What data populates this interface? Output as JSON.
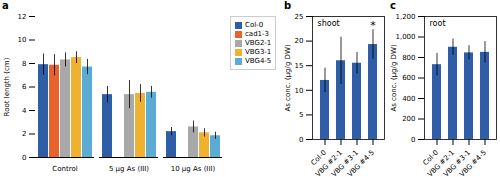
{
  "chart_data": [
    {
      "type": "bar",
      "categories": [
        "Control",
        "5 μg As (III)",
        "10 μg As (III)"
      ],
      "series": [
        {
          "name": "Col-0",
          "color": "#2e5ea8",
          "values": [
            7.9,
            5.35,
            2.2
          ],
          "errors": [
            0.9,
            0.7,
            0.35
          ]
        },
        {
          "name": "cad1-3",
          "color": "#e8622a",
          "values": [
            7.85,
            null,
            null
          ],
          "errors": [
            0.9,
            null,
            null
          ]
        },
        {
          "name": "VBG2-1",
          "color": "#a8a8a8",
          "values": [
            8.3,
            5.35,
            2.6
          ],
          "errors": [
            0.6,
            1.2,
            0.5
          ]
        },
        {
          "name": "VBG3-1",
          "color": "#f0b030",
          "values": [
            8.5,
            5.45,
            2.1
          ],
          "errors": [
            0.5,
            0.75,
            0.35
          ]
        },
        {
          "name": "VBG4-5",
          "color": "#5bacd4",
          "values": [
            7.7,
            5.55,
            1.85
          ],
          "errors": [
            0.65,
            0.5,
            0.3
          ]
        }
      ],
      "ylabel": "Root length (cm)",
      "ylim": [
        0,
        12
      ],
      "yticks": [
        0,
        2,
        4,
        6,
        8,
        10,
        12
      ],
      "legend": "right",
      "annotations": [
        {
          "text": "a"
        }
      ]
    },
    {
      "type": "bar",
      "title": "shoot",
      "categories": [
        "Col-0",
        "VBG #2-1",
        "VBG #3-1",
        "VBG #4-5"
      ],
      "values": [
        12.0,
        16.0,
        15.5,
        19.3
      ],
      "errors": [
        2.5,
        4.8,
        2.2,
        3.0
      ],
      "color": "#2e5ea8",
      "ylabel": "As conc. (μg/g DW)",
      "ylim": [
        0,
        25
      ],
      "yticks": [
        0,
        5,
        10,
        15,
        20,
        25
      ],
      "annotations": [
        {
          "text": "b"
        },
        {
          "text": "*",
          "category": "VBG #4-5"
        }
      ]
    },
    {
      "type": "bar",
      "title": "root",
      "categories": [
        "Col-0",
        "VBG #2-1",
        "VBG #3-1",
        "VBG #4-5"
      ],
      "values": [
        730,
        900,
        845,
        850
      ],
      "errors": [
        110,
        80,
        70,
        105
      ],
      "color": "#2e5ea8",
      "ylabel": "As conc. (μg/g DW)",
      "ylim": [
        0,
        1200
      ],
      "yticks": [
        0,
        200,
        400,
        600,
        800,
        1000,
        1200
      ],
      "annotations": [
        {
          "text": "c"
        }
      ]
    }
  ]
}
